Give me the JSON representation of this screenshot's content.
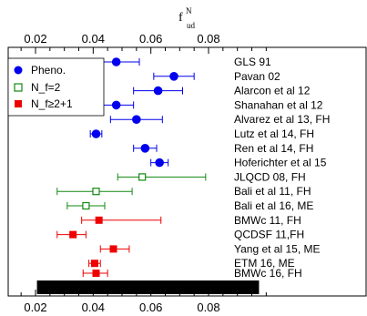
{
  "chart_data": {
    "type": "scatter",
    "orientation": "horizontal",
    "title": "",
    "xlabel": "f",
    "xlabel_superscript": "N",
    "xlabel_subscript": "ud",
    "xlim": [
      0.01,
      0.1
    ],
    "xticks": [
      0.02,
      0.04,
      0.06,
      0.08
    ],
    "xtick_labels": [
      "0.02",
      "0.04",
      "0.06",
      "0.08"
    ],
    "grid": false,
    "legend_position": "top-left",
    "colors": {
      "pheno": "#0000ee",
      "nf2": "#118811",
      "nf21": "#ee0000",
      "band": "#000000"
    },
    "series": [
      {
        "name": "Pheno.",
        "marker": "circle",
        "filled": true,
        "color": "#0000ee"
      },
      {
        "name": "N_f=2",
        "marker": "square",
        "filled": false,
        "color": "#118811"
      },
      {
        "name": "N_f≥2+1",
        "marker": "square",
        "filled": true,
        "color": "#ee0000"
      }
    ],
    "points": [
      {
        "label": "GLS 91",
        "series": 0,
        "value": 0.048,
        "err_low": 0.04,
        "err_high": 0.056
      },
      {
        "label": "Pavan 02",
        "series": 0,
        "value": 0.068,
        "err_low": 0.061,
        "err_high": 0.075
      },
      {
        "label": "Alarcon et al 12",
        "series": 0,
        "value": 0.0625,
        "err_low": 0.054,
        "err_high": 0.071
      },
      {
        "label": "Shanahan et al 12",
        "series": 0,
        "value": 0.048,
        "err_low": 0.042,
        "err_high": 0.054
      },
      {
        "label": "Alvarez et al 13, FH",
        "series": 0,
        "value": 0.055,
        "err_low": 0.046,
        "err_high": 0.064
      },
      {
        "label": "Lutz et al 14, FH",
        "series": 0,
        "value": 0.041,
        "err_low": 0.039,
        "err_high": 0.043
      },
      {
        "label": "Ren et al 14, FH",
        "series": 0,
        "value": 0.058,
        "err_low": 0.054,
        "err_high": 0.062
      },
      {
        "label": "Hoferichter et al 15",
        "series": 0,
        "value": 0.063,
        "err_low": 0.06,
        "err_high": 0.066
      },
      {
        "label": "JLQCD 08, FH",
        "series": 1,
        "value": 0.057,
        "err_low": 0.0485,
        "err_high": 0.079
      },
      {
        "label": "Bali et al 11, FH",
        "series": 1,
        "value": 0.041,
        "err_low": 0.0275,
        "err_high": 0.0535
      },
      {
        "label": "Bali et al 16, ME",
        "series": 1,
        "value": 0.0375,
        "err_low": 0.031,
        "err_high": 0.044
      },
      {
        "label": "BMWc 11, FH",
        "series": 2,
        "value": 0.042,
        "err_low": 0.036,
        "err_high": 0.0635
      },
      {
        "label": "QCDSF 11,FH",
        "series": 2,
        "value": 0.033,
        "err_low": 0.0275,
        "err_high": 0.0375
      },
      {
        "label": "Yang et al 15, ME",
        "series": 2,
        "value": 0.047,
        "err_low": 0.0425,
        "err_high": 0.0525
      },
      {
        "label": "ETM 16, ME",
        "series": 2,
        "value": 0.0405,
        "err_low": 0.0385,
        "err_high": 0.0425
      },
      {
        "label": "BMWc 16, FH",
        "series": 2,
        "value": 0.041,
        "err_low": 0.0365,
        "err_high": 0.045
      }
    ],
    "band": {
      "from": 0.0205,
      "to": 0.0975
    }
  }
}
